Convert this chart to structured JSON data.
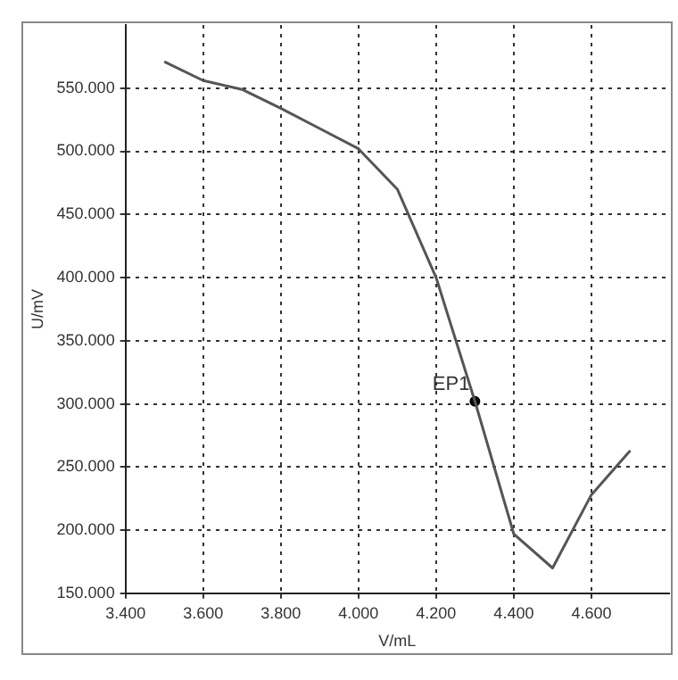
{
  "chart_data": {
    "type": "line",
    "xlabel": "V/mL",
    "ylabel": "U/mV",
    "xlim": [
      3.4,
      4.8
    ],
    "xticks": [
      {
        "value": 3.4,
        "label": "3.400"
      },
      {
        "value": 3.6,
        "label": "3.600"
      },
      {
        "value": 3.8,
        "label": "3.800"
      },
      {
        "value": 4.0,
        "label": "4.000"
      },
      {
        "value": 4.2,
        "label": "4.200"
      },
      {
        "value": 4.4,
        "label": "4.400"
      },
      {
        "value": 4.6,
        "label": "4.600"
      }
    ],
    "ylim": [
      150,
      600
    ],
    "yticks": [
      {
        "value": 150,
        "label": "150.000"
      },
      {
        "value": 200,
        "label": "200.000"
      },
      {
        "value": 250,
        "label": "250.000"
      },
      {
        "value": 300,
        "label": "300.000"
      },
      {
        "value": 350,
        "label": "350.000"
      },
      {
        "value": 400,
        "label": "400.000"
      },
      {
        "value": 450,
        "label": "450.000"
      },
      {
        "value": 500,
        "label": "500.000"
      },
      {
        "value": 550,
        "label": "550.000"
      }
    ],
    "grid": true,
    "legend": false,
    "line_style": "solid",
    "series": [
      {
        "type": "line",
        "color": "#555555",
        "marker": "none",
        "x": [
          3.5,
          3.6,
          3.7,
          3.8,
          3.9,
          4.0,
          4.1,
          4.2,
          4.3,
          4.4,
          4.5,
          4.6,
          4.7
        ],
        "values": [
          571,
          556,
          549,
          534,
          518,
          502,
          470,
          400,
          302,
          197,
          170,
          228,
          263
        ]
      },
      {
        "type": "scatter",
        "color": "#000000",
        "marker": "circle",
        "x": [
          4.3
        ],
        "values": [
          302
        ]
      }
    ],
    "annotations": [
      {
        "text": "EP1",
        "x": 4.3,
        "y": 302
      }
    ]
  }
}
